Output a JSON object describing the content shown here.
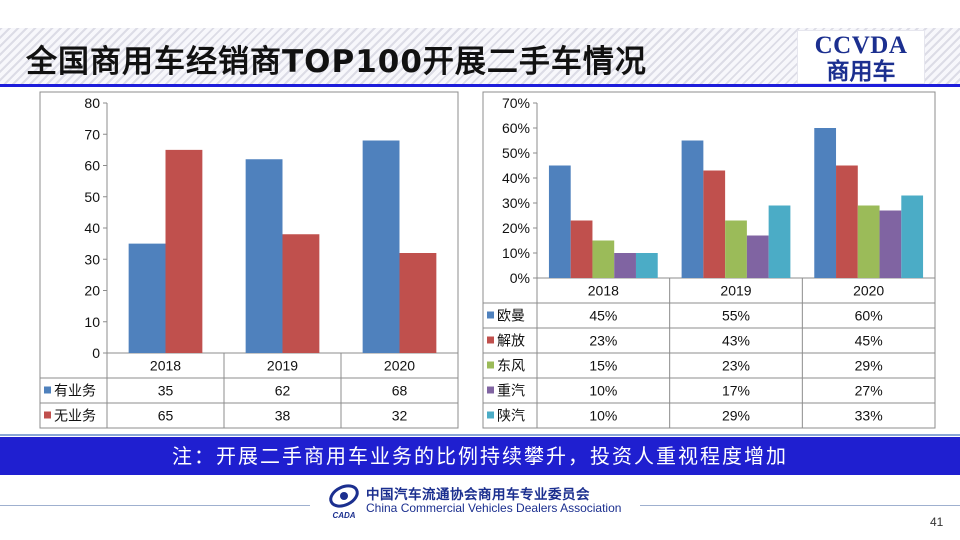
{
  "title": "全国商用车经销商TOP100开展二手车情况",
  "logo": {
    "line1": "CCVDA",
    "line2": "商用车"
  },
  "note": "注：开展二手商用车业务的比例持续攀升，投资人重视程度增加",
  "footer": {
    "cn": "中国汽车流通协会商用车专业委员会",
    "en": "China Commercial Vehicles Dealers Association",
    "emblem": "CADA"
  },
  "page_number": "41",
  "chart_data": [
    {
      "type": "bar",
      "categories": [
        "2018",
        "2019",
        "2020"
      ],
      "series": [
        {
          "name": "有业务",
          "values": [
            35,
            62,
            68
          ],
          "color": "#4f81bd"
        },
        {
          "name": "无业务",
          "values": [
            65,
            38,
            32
          ],
          "color": "#c0504d"
        }
      ],
      "ylim": [
        0,
        80
      ],
      "yticks": [
        "0",
        "10",
        "20",
        "30",
        "40",
        "50",
        "60",
        "70",
        "80"
      ],
      "table": [
        [
          "35",
          "62",
          "68"
        ],
        [
          "65",
          "38",
          "32"
        ]
      ],
      "legend": "data-table"
    },
    {
      "type": "bar",
      "categories": [
        "2018",
        "2019",
        "2020"
      ],
      "series": [
        {
          "name": "欧曼",
          "values": [
            45,
            55,
            60
          ],
          "color": "#4f81bd"
        },
        {
          "name": "解放",
          "values": [
            23,
            43,
            45
          ],
          "color": "#c0504d"
        },
        {
          "name": "东风",
          "values": [
            15,
            23,
            29
          ],
          "color": "#9bbb59"
        },
        {
          "name": "重汽",
          "values": [
            10,
            17,
            27
          ],
          "color": "#8064a2"
        },
        {
          "name": "陕汽",
          "values": [
            10,
            29,
            33
          ],
          "color": "#4bacc6"
        }
      ],
      "ylim": [
        0,
        70
      ],
      "yticks": [
        "0%",
        "10%",
        "20%",
        "30%",
        "40%",
        "50%",
        "60%",
        "70%"
      ],
      "table": [
        [
          "45%",
          "55%",
          "60%"
        ],
        [
          "23%",
          "43%",
          "45%"
        ],
        [
          "15%",
          "23%",
          "29%"
        ],
        [
          "10%",
          "17%",
          "27%"
        ],
        [
          "10%",
          "29%",
          "33%"
        ]
      ],
      "legend": "data-table"
    }
  ]
}
